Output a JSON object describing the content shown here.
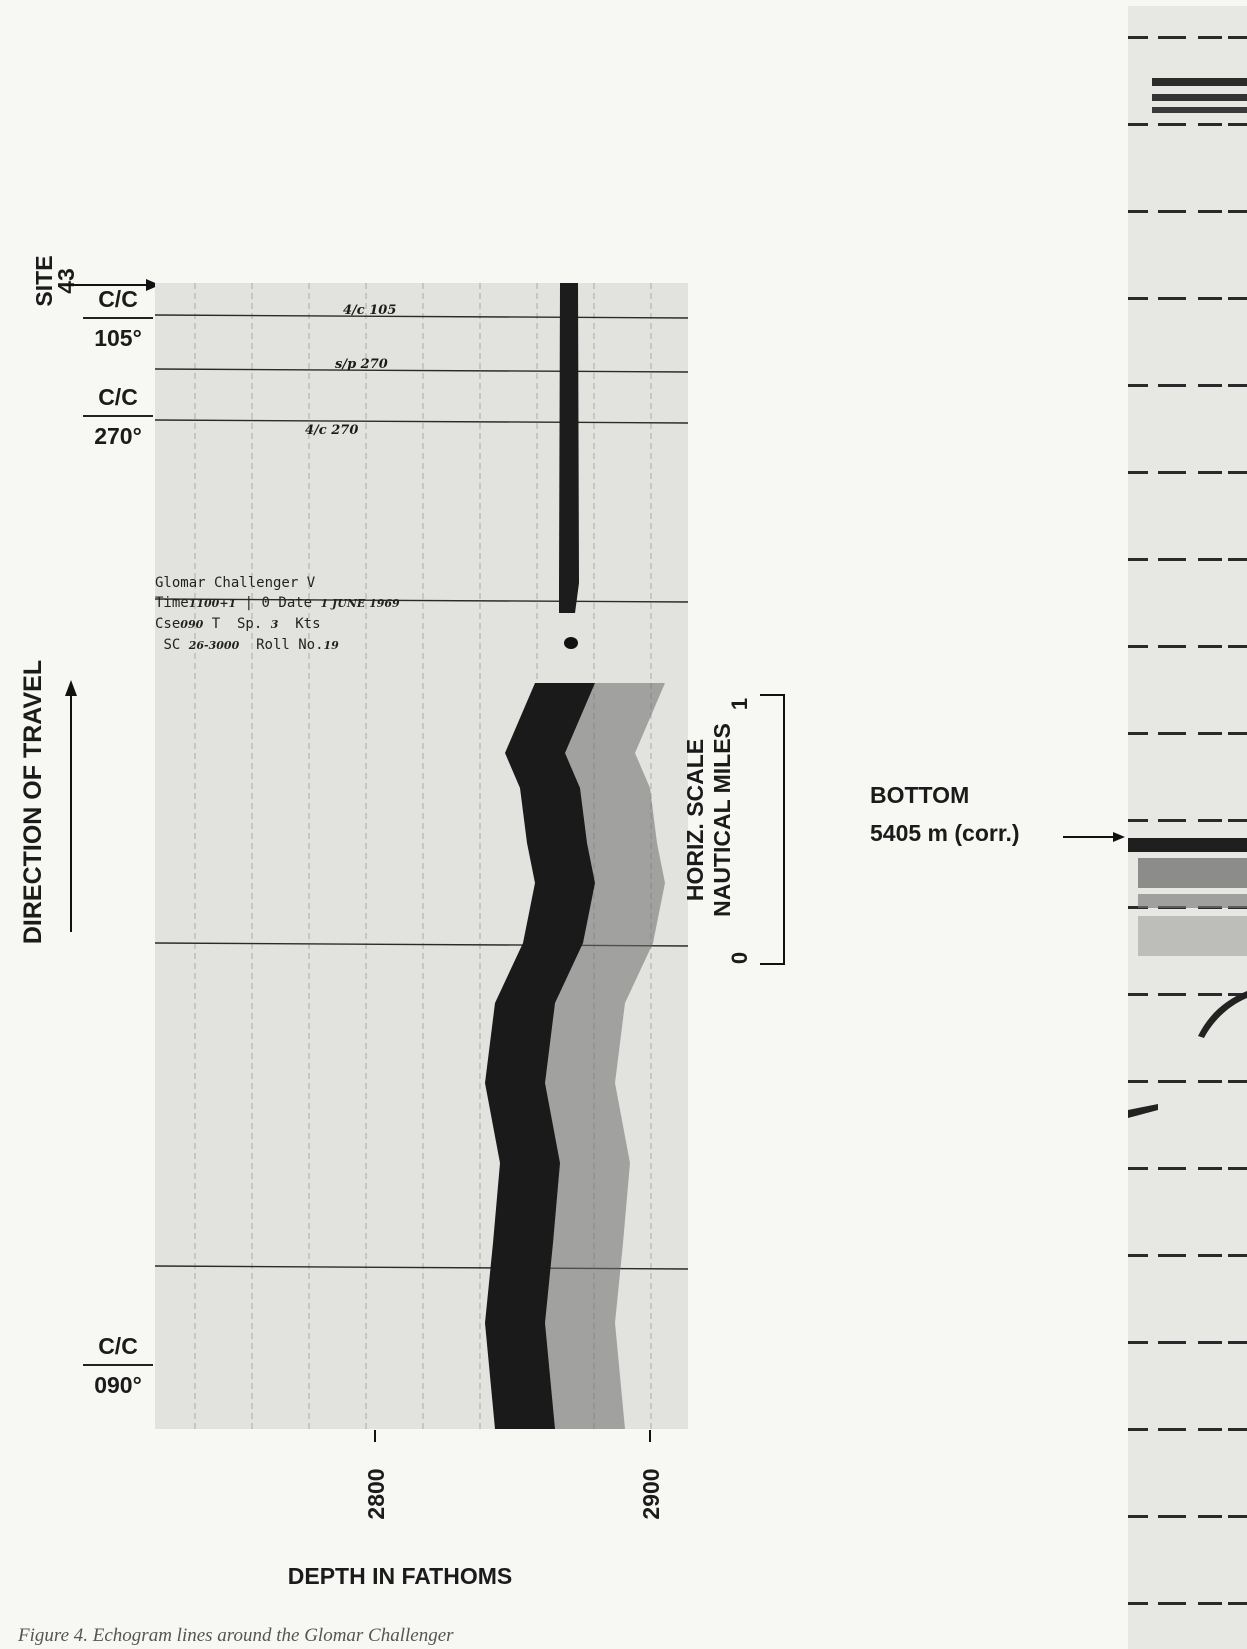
{
  "site": {
    "label": "SITE",
    "number": "43"
  },
  "course_changes": [
    {
      "label": "C/C",
      "heading": "105°"
    },
    {
      "label": "C/C",
      "heading": "270°"
    },
    {
      "label": "C/C",
      "heading": "090°"
    }
  ],
  "handwritten_marks": [
    "4/c 105",
    "s/p 270",
    "4/c 270"
  ],
  "record_stamp": {
    "line1_label": "Glomar Challenger",
    "line1_value": "V",
    "time_label": "Time",
    "time_value": "1100+1",
    "zero": "0",
    "date_label": "Date",
    "date_value": "1 JUNE 1969",
    "cse_label": "Cse",
    "cse_value": "090",
    "cse_unit": "T",
    "speed_label": "Sp.",
    "speed_value": "3",
    "speed_unit": "Kts",
    "scale_label": "SC",
    "scale_value": "26-3000",
    "roll_label": "Roll No.",
    "roll_value": "19"
  },
  "direction_label": "DIRECTION OF TRAVEL",
  "horiz_scale": {
    "title": "HORIZ. SCALE",
    "units": "NAUTICAL MILES",
    "tick_top": "1",
    "tick_bottom": "0"
  },
  "bottom_annotation": {
    "label": "BOTTOM",
    "depth": "5405 m (corr.)"
  },
  "depth_axis": {
    "title": "DEPTH IN FATHOMS",
    "tick_labels": [
      "2800",
      "2900"
    ]
  },
  "caption": "Figure 4.  Echogram lines around the Glomar Challenger"
}
